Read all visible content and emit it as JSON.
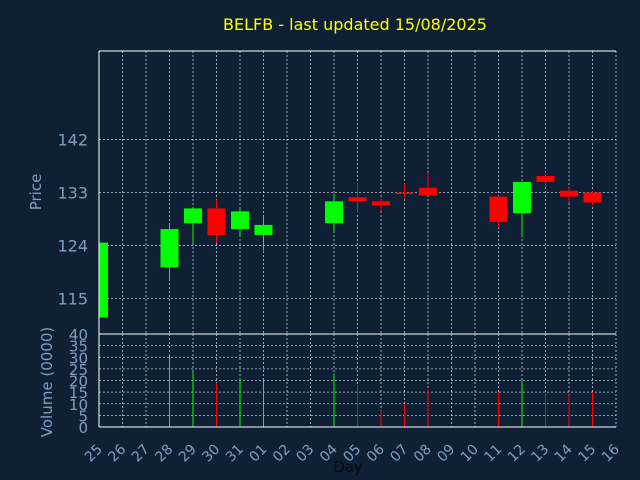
{
  "chart_data": {
    "type": "candlestick",
    "title": "BELFB - last updated 15/08/2025",
    "price_axis": {
      "label": "Price",
      "ticks": [
        115,
        124,
        133,
        142
      ],
      "ylim": [
        109,
        157
      ],
      "grid": true
    },
    "volume_axis": {
      "label": "Volume (0000)",
      "ticks": [
        0,
        5,
        10,
        15,
        20,
        25,
        30,
        35,
        40
      ],
      "ylim": [
        0,
        40
      ],
      "grid": true
    },
    "x_axis": {
      "label": "Day",
      "tick_labels": [
        "25",
        "26",
        "27",
        "28",
        "29",
        "30",
        "31",
        "01",
        "02",
        "03",
        "04",
        "05",
        "06",
        "07",
        "08",
        "09",
        "10",
        "11",
        "12",
        "13",
        "14",
        "15",
        "16"
      ]
    },
    "colors": {
      "up": "#00ff00",
      "down": "#ff0000",
      "title": "#ffff00",
      "axis_text": "#7f9fc0",
      "background": "#102034"
    },
    "candles": [
      {
        "day": "25",
        "open": 111.8,
        "high": 124.8,
        "low": 111.5,
        "close": 124.5
      },
      {
        "day": "28",
        "open": 120.3,
        "high": 127.8,
        "low": 118.2,
        "close": 126.8
      },
      {
        "day": "29",
        "open": 127.8,
        "high": 130.5,
        "low": 124.5,
        "close": 130.3
      },
      {
        "day": "30",
        "open": 130.3,
        "high": 131.8,
        "low": 124.5,
        "close": 125.8
      },
      {
        "day": "31",
        "open": 126.8,
        "high": 130.3,
        "low": 125.5,
        "close": 129.8
      },
      {
        "day": "01",
        "open": 125.8,
        "high": 129.0,
        "low": 123.2,
        "close": 127.5
      },
      {
        "day": "04",
        "open": 127.8,
        "high": 132.8,
        "low": 126.3,
        "close": 131.5
      },
      {
        "day": "05",
        "open": 132.2,
        "high": 134.8,
        "low": 129.5,
        "close": 131.5
      },
      {
        "day": "06",
        "open": 131.5,
        "high": 132.0,
        "low": 129.8,
        "close": 130.8
      },
      {
        "day": "07",
        "open": 133.0,
        "high": 134.5,
        "low": 132.0,
        "close": 132.8
      },
      {
        "day": "08",
        "open": 133.8,
        "high": 136.2,
        "low": 132.5,
        "close": 132.5
      },
      {
        "day": "11",
        "open": 132.3,
        "high": 132.5,
        "low": 127.0,
        "close": 128.0
      },
      {
        "day": "12",
        "open": 129.5,
        "high": 134.8,
        "low": 125.5,
        "close": 134.8
      },
      {
        "day": "13",
        "open": 135.8,
        "high": 136.5,
        "low": 134.0,
        "close": 134.8
      },
      {
        "day": "14",
        "open": 133.3,
        "high": 133.8,
        "low": 131.2,
        "close": 132.3
      },
      {
        "day": "15",
        "open": 133.0,
        "high": 133.2,
        "low": 130.8,
        "close": 131.3
      }
    ],
    "volume": [
      {
        "day": "25",
        "value": 0,
        "color": "up"
      },
      {
        "day": "28",
        "value": 31,
        "color": "up"
      },
      {
        "day": "29",
        "value": 24,
        "color": "up"
      },
      {
        "day": "30",
        "value": 19,
        "color": "down"
      },
      {
        "day": "31",
        "value": 21,
        "color": "up"
      },
      {
        "day": "01",
        "value": 20,
        "color": "up"
      },
      {
        "day": "04",
        "value": 23,
        "color": "up"
      },
      {
        "day": "05",
        "value": 18,
        "color": "down"
      },
      {
        "day": "06",
        "value": 7,
        "color": "down"
      },
      {
        "day": "07",
        "value": 10,
        "color": "down"
      },
      {
        "day": "08",
        "value": 16,
        "color": "down"
      },
      {
        "day": "11",
        "value": 15,
        "color": "down"
      },
      {
        "day": "12",
        "value": 20,
        "color": "up"
      },
      {
        "day": "13",
        "value": 14,
        "color": "down"
      },
      {
        "day": "14",
        "value": 14,
        "color": "down"
      },
      {
        "day": "15",
        "value": 15,
        "color": "down"
      }
    ]
  }
}
